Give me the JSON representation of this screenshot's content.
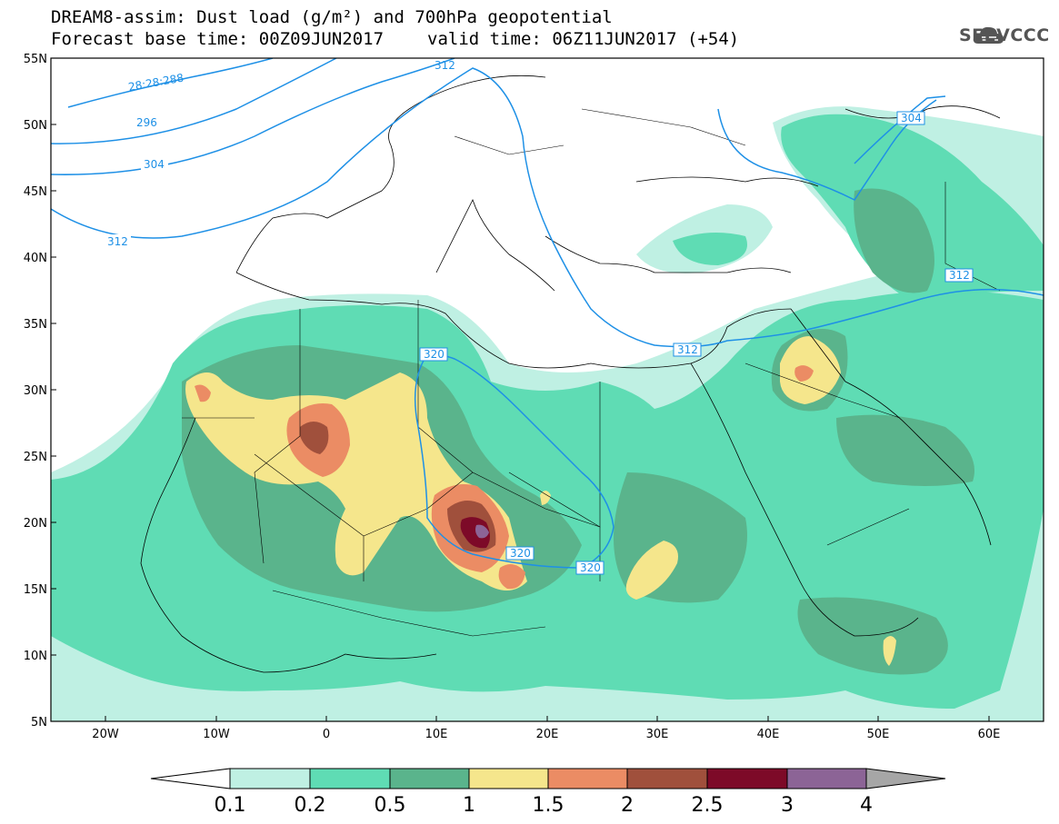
{
  "header": {
    "line1": "DREAM8-assim: Dust load (g/m²) and 700hPa geopotential",
    "line2_base": "Forecast base time: 00Z09JUN2017",
    "line2_valid": "valid time: 06Z11JUN2017 (+54)"
  },
  "logo": {
    "text": "SEEVCCC",
    "icon": "cloud-icon"
  },
  "map": {
    "lat_labels": [
      "55N",
      "50N",
      "45N",
      "40N",
      "35N",
      "30N",
      "25N",
      "20N",
      "15N",
      "10N",
      "5N"
    ],
    "lon_labels": [
      "20W",
      "10W",
      "0",
      "10E",
      "20E",
      "30E",
      "40E",
      "50E",
      "60E"
    ],
    "contour_labels": [
      "28:28:288",
      "296",
      "304",
      "312",
      "320",
      "320",
      "320",
      "312",
      "312",
      "304",
      "312"
    ]
  },
  "colorbar": {
    "labels": [
      "0.1",
      "0.2",
      "0.5",
      "1",
      "1.5",
      "2",
      "2.5",
      "3",
      "4"
    ],
    "colors": [
      "#bff0e3",
      "#5fdcb4",
      "#5ab48c",
      "#f5e68c",
      "#eb8c64",
      "#a0503c",
      "#7d0a28",
      "#8c6496"
    ]
  }
}
